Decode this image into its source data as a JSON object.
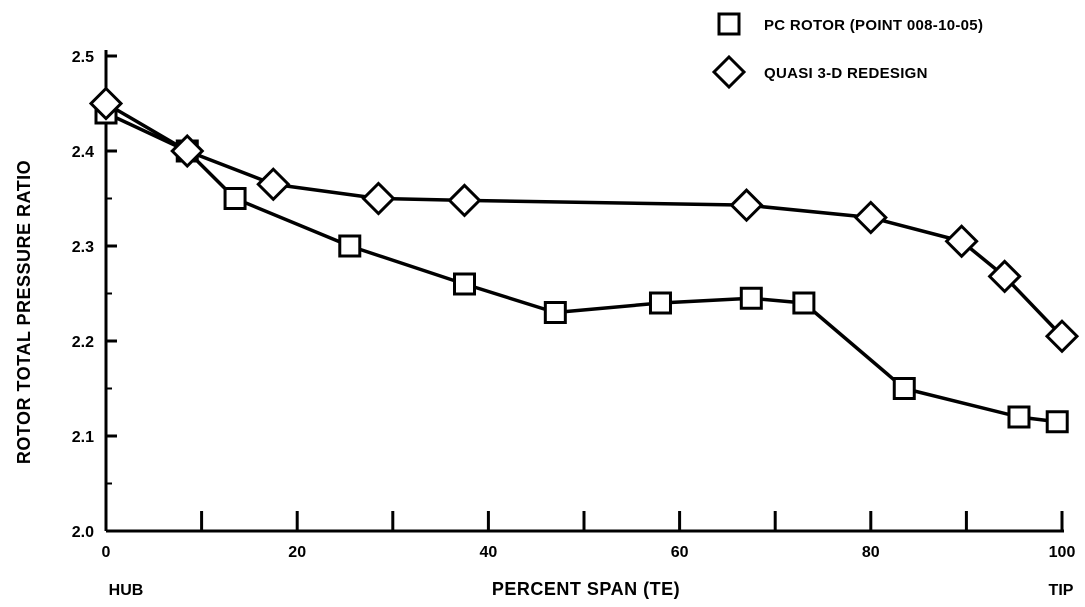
{
  "chart_data": {
    "type": "line",
    "xlabel": "PERCENT SPAN (TE)",
    "ylabel": "ROTOR TOTAL PRESSURE RATIO",
    "xlim": [
      0,
      100
    ],
    "ylim": [
      2.0,
      2.5
    ],
    "x_ticks": [
      "0",
      "20",
      "40",
      "60",
      "80",
      "100"
    ],
    "y_ticks": [
      "2.0",
      "2.1",
      "2.2",
      "2.3",
      "2.4",
      "2.5"
    ],
    "x_end_labels": {
      "left": "HUB",
      "right": "TIP"
    },
    "grid": false,
    "legend_position": "top-right",
    "series": [
      {
        "name": "PC ROTOR (POINT 008-10-05)",
        "marker": "square",
        "points": [
          [
            0,
            2.44
          ],
          [
            8.5,
            2.4
          ],
          [
            13.5,
            2.35
          ],
          [
            25.5,
            2.3
          ],
          [
            37.5,
            2.26
          ],
          [
            47,
            2.23
          ],
          [
            58,
            2.24
          ],
          [
            67.5,
            2.245
          ],
          [
            73,
            2.24
          ],
          [
            83.5,
            2.15
          ],
          [
            95.5,
            2.12
          ],
          [
            99.5,
            2.115
          ]
        ]
      },
      {
        "name": "QUASI 3-D REDESIGN",
        "marker": "diamond",
        "points": [
          [
            0,
            2.45
          ],
          [
            8.5,
            2.4
          ],
          [
            17.5,
            2.365
          ],
          [
            28.5,
            2.35
          ],
          [
            37.5,
            2.348
          ],
          [
            67,
            2.343
          ],
          [
            80,
            2.33
          ],
          [
            89.5,
            2.305
          ],
          [
            94,
            2.268
          ],
          [
            100,
            2.205
          ]
        ]
      }
    ]
  }
}
